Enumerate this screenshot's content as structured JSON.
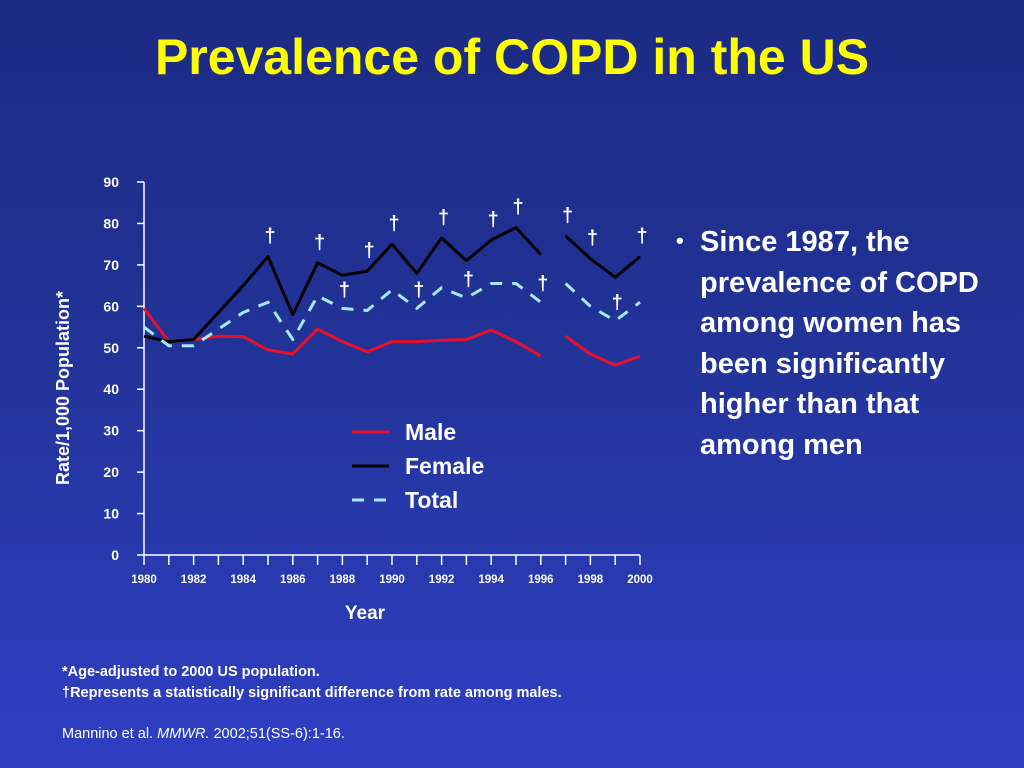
{
  "slide": {
    "title": "Prevalence of COPD in the US",
    "bullet": "Since 1987, the prevalence of COPD among women has been significantly higher than that among men",
    "footnote_1": "*Age-adjusted to 2000 US population.",
    "footnote_2": "†Represents a statistically significant difference from rate among males.",
    "citation": {
      "authors": "Mannino et al. ",
      "journal": "MMWR.",
      "details": " 2002;51(SS-6):1-16."
    }
  },
  "colors": {
    "title": "#ffff00",
    "male": "#e8102a",
    "female": "#000000",
    "total": "#a8e8ff",
    "text": "#ffffff"
  },
  "chart_data": {
    "type": "line",
    "xlabel": "Year",
    "ylabel": "Rate/1,000 Population*",
    "ylim": [
      0,
      90
    ],
    "yticks": [
      0,
      10,
      20,
      30,
      40,
      50,
      60,
      70,
      80,
      90
    ],
    "xlim": [
      1980,
      2000
    ],
    "xticks": [
      1980,
      1982,
      1984,
      1986,
      1988,
      1990,
      1992,
      1994,
      1996,
      1998,
      2000
    ],
    "x": [
      1980,
      1981,
      1982,
      1983,
      1984,
      1985,
      1986,
      1987,
      1988,
      1989,
      1990,
      1991,
      1992,
      1993,
      1994,
      1995,
      1996,
      1997,
      1998,
      1999,
      2000
    ],
    "series": [
      {
        "name": "Male",
        "style": "solid",
        "values": [
          59.5,
          51.5,
          52.0,
          52.8,
          52.7,
          49.5,
          48.5,
          54.5,
          51.5,
          49.0,
          51.5,
          51.5,
          51.8,
          52.0,
          54.3,
          51.5,
          48.0,
          52.8,
          48.5,
          45.8,
          48.0
        ]
      },
      {
        "name": "Female",
        "style": "solid",
        "values": [
          52.8,
          51.5,
          52.0,
          58.5,
          65.0,
          72.0,
          58.0,
          70.5,
          67.5,
          68.5,
          75.0,
          68.0,
          76.5,
          71.0,
          76.0,
          79.0,
          72.5,
          77.0,
          71.5,
          67.0,
          72.0
        ]
      },
      {
        "name": "Total",
        "style": "dashed",
        "values": [
          55.0,
          50.5,
          50.5,
          54.5,
          58.5,
          61.0,
          52.0,
          62.5,
          59.5,
          59.0,
          64.0,
          59.5,
          64.5,
          62.0,
          65.5,
          65.5,
          61.0,
          65.5,
          60.0,
          56.5,
          61.0
        ]
      }
    ],
    "gap_between": [
      1996,
      1997
    ],
    "significance_marker": "†",
    "significance_years": [
      1985,
      1987,
      1988,
      1989,
      1990,
      1991,
      1992,
      1993,
      1994,
      1995,
      1996,
      1997,
      1998,
      1999,
      2000
    ],
    "legend": [
      "Male",
      "Female",
      "Total"
    ],
    "legend_position": "center"
  }
}
